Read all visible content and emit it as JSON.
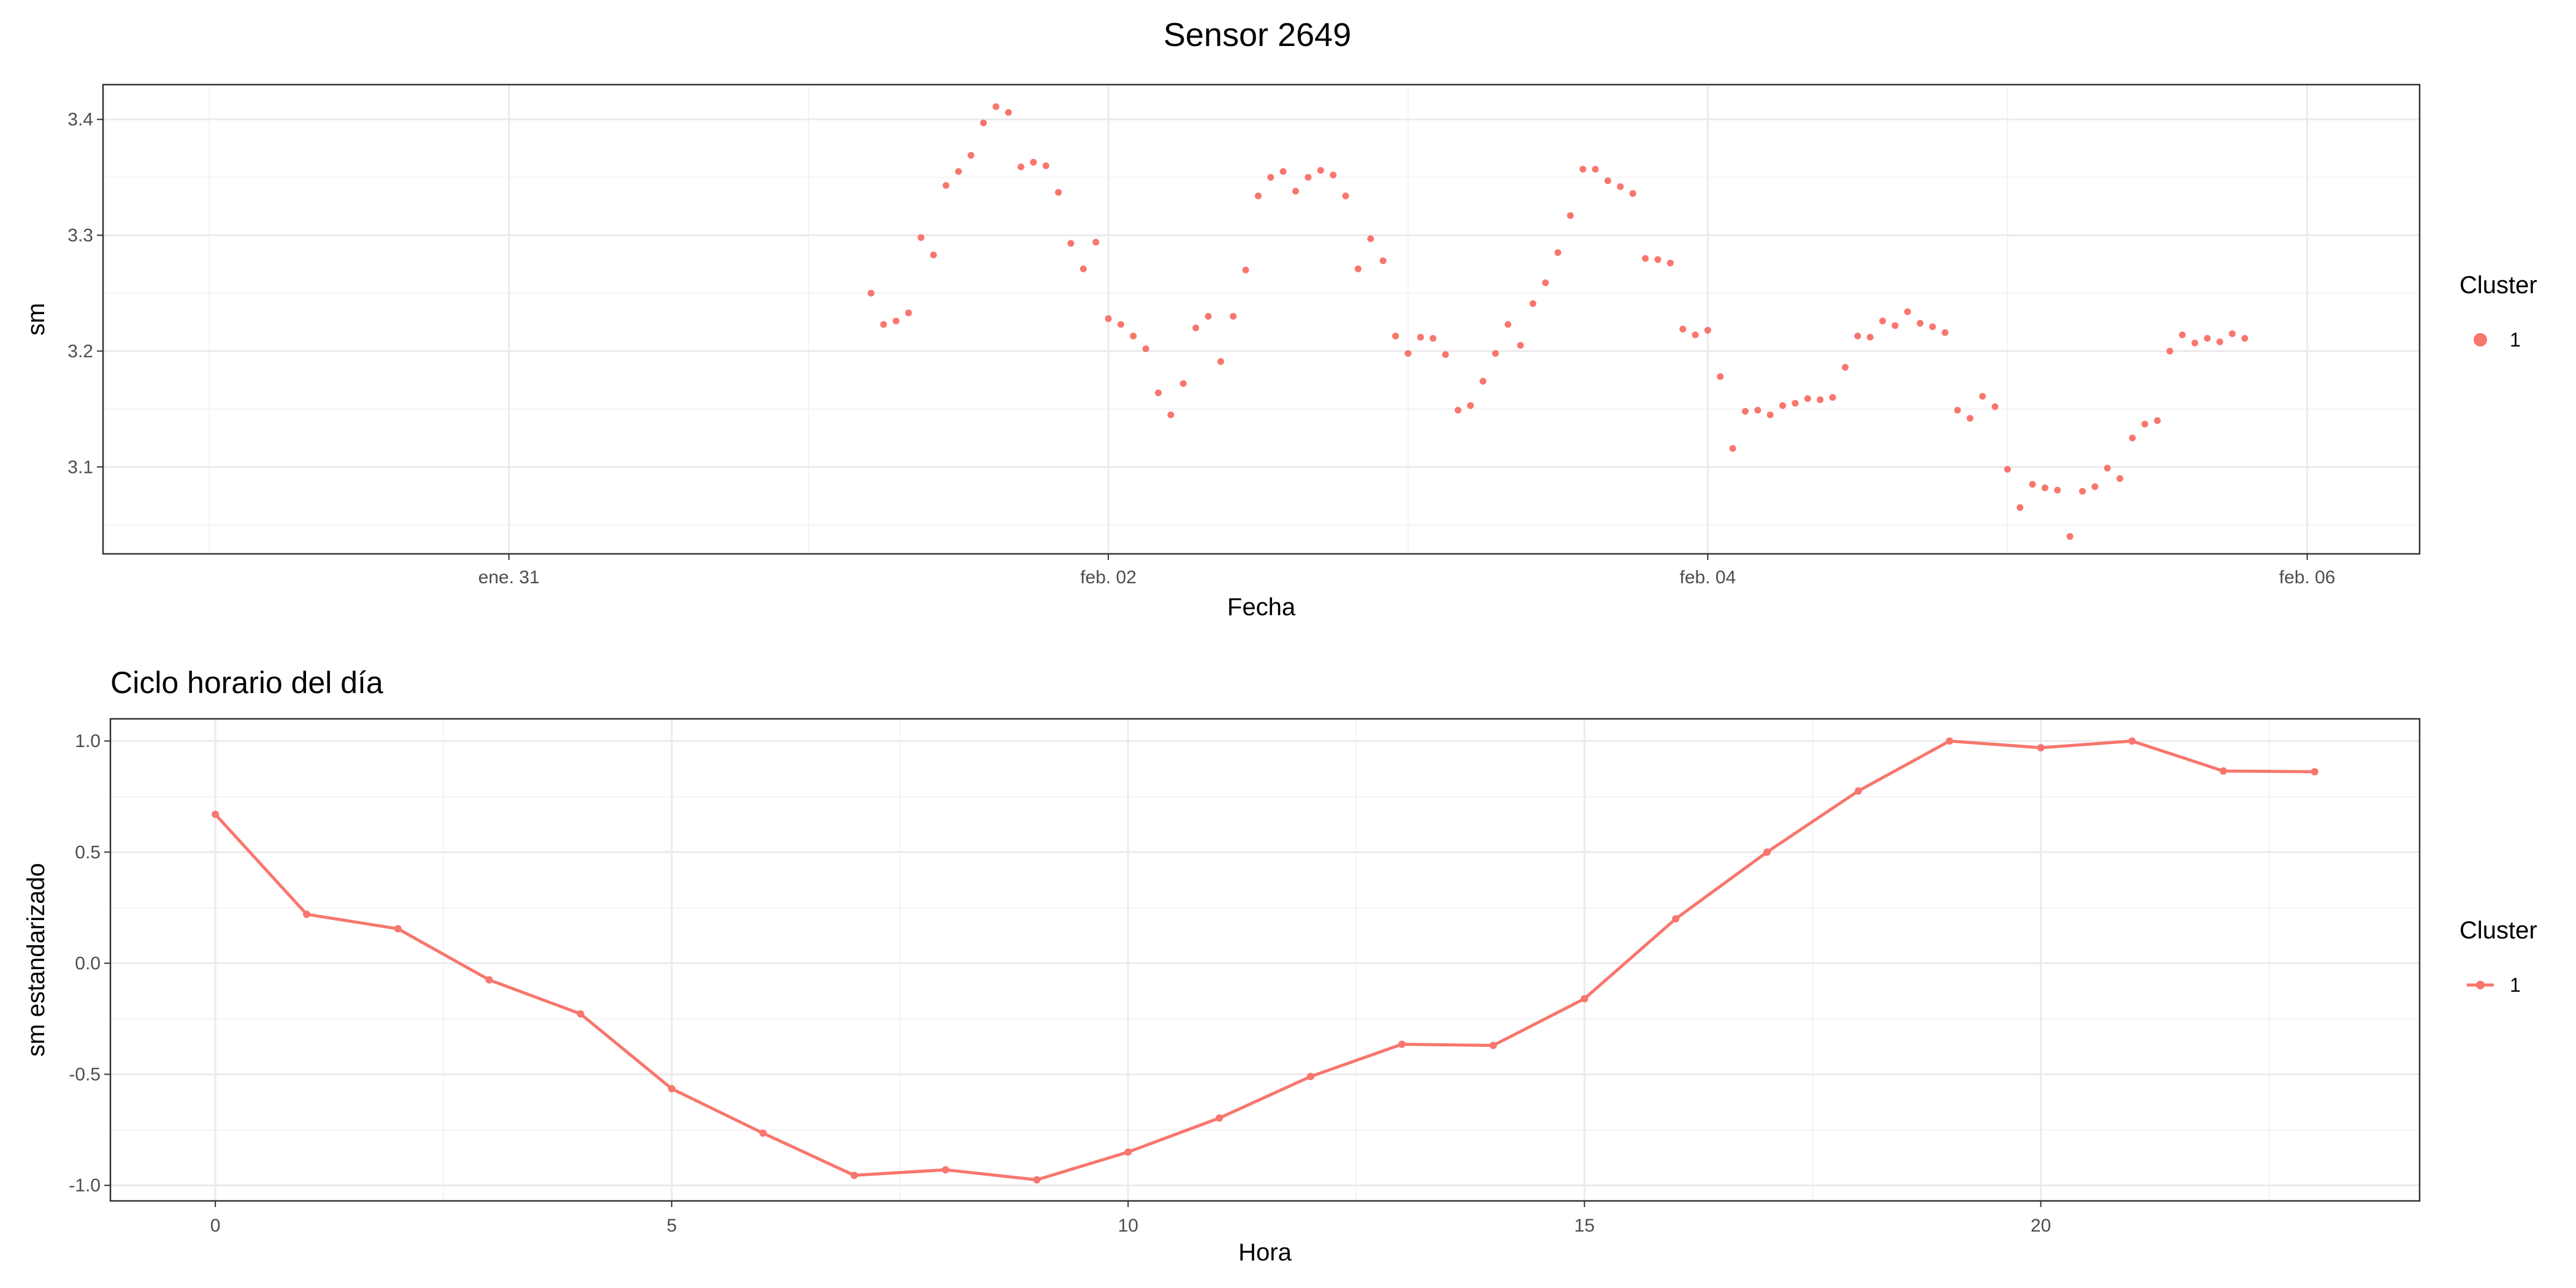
{
  "figure": {
    "main_title": "Sensor 2649"
  },
  "chart_data": [
    {
      "type": "scatter",
      "title": "",
      "xlabel": "Fecha",
      "ylabel": "sm",
      "x_type": "datetime",
      "xlim": [
        "2026-01-29T15:30",
        "2026-02-06T09:00"
      ],
      "ylim": [
        3.025,
        3.43
      ],
      "x_ticks": [
        "2026-01-31T00:00",
        "2026-02-02T00:00",
        "2026-02-04T00:00",
        "2026-02-06T00:00"
      ],
      "x_tick_labels": [
        "ene. 31",
        "feb. 02",
        "feb. 04",
        "feb. 06"
      ],
      "y_ticks": [
        3.1,
        3.2,
        3.3,
        3.4
      ],
      "y_tick_labels": [
        "3.1",
        "3.2",
        "3.3",
        "3.4"
      ],
      "grid": true,
      "legend": {
        "title": "Cluster",
        "position": "right",
        "labels": [
          "1"
        ]
      },
      "series": [
        {
          "name": "1",
          "color": "#F8766D",
          "points": [
            [
              "2026-02-01T05:00",
              3.25
            ],
            [
              "2026-02-01T06:00",
              3.223
            ],
            [
              "2026-02-01T07:00",
              3.226
            ],
            [
              "2026-02-01T08:00",
              3.233
            ],
            [
              "2026-02-01T09:00",
              3.298
            ],
            [
              "2026-02-01T10:00",
              3.283
            ],
            [
              "2026-02-01T11:00",
              3.343
            ],
            [
              "2026-02-01T12:00",
              3.355
            ],
            [
              "2026-02-01T13:00",
              3.369
            ],
            [
              "2026-02-01T14:00",
              3.397
            ],
            [
              "2026-02-01T15:00",
              3.411
            ],
            [
              "2026-02-01T16:00",
              3.406
            ],
            [
              "2026-02-01T17:00",
              3.359
            ],
            [
              "2026-02-01T18:00",
              3.363
            ],
            [
              "2026-02-01T19:00",
              3.36
            ],
            [
              "2026-02-01T20:00",
              3.337
            ],
            [
              "2026-02-01T21:00",
              3.293
            ],
            [
              "2026-02-01T22:00",
              3.271
            ],
            [
              "2026-02-01T23:00",
              3.294
            ],
            [
              "2026-02-02T00:00",
              3.228
            ],
            [
              "2026-02-02T01:00",
              3.223
            ],
            [
              "2026-02-02T02:00",
              3.213
            ],
            [
              "2026-02-02T03:00",
              3.202
            ],
            [
              "2026-02-02T04:00",
              3.164
            ],
            [
              "2026-02-02T05:00",
              3.145
            ],
            [
              "2026-02-02T06:00",
              3.172
            ],
            [
              "2026-02-02T07:00",
              3.22
            ],
            [
              "2026-02-02T08:00",
              3.23
            ],
            [
              "2026-02-02T09:00",
              3.191
            ],
            [
              "2026-02-02T10:00",
              3.23
            ],
            [
              "2026-02-02T11:00",
              3.27
            ],
            [
              "2026-02-02T12:00",
              3.334
            ],
            [
              "2026-02-02T13:00",
              3.35
            ],
            [
              "2026-02-02T14:00",
              3.355
            ],
            [
              "2026-02-02T15:00",
              3.338
            ],
            [
              "2026-02-02T16:00",
              3.35
            ],
            [
              "2026-02-02T17:00",
              3.356
            ],
            [
              "2026-02-02T18:00",
              3.352
            ],
            [
              "2026-02-02T19:00",
              3.334
            ],
            [
              "2026-02-02T20:00",
              3.271
            ],
            [
              "2026-02-02T21:00",
              3.297
            ],
            [
              "2026-02-02T22:00",
              3.278
            ],
            [
              "2026-02-02T23:00",
              3.213
            ],
            [
              "2026-02-03T00:00",
              3.198
            ],
            [
              "2026-02-03T01:00",
              3.212
            ],
            [
              "2026-02-03T02:00",
              3.211
            ],
            [
              "2026-02-03T03:00",
              3.197
            ],
            [
              "2026-02-03T04:00",
              3.149
            ],
            [
              "2026-02-03T05:00",
              3.153
            ],
            [
              "2026-02-03T06:00",
              3.174
            ],
            [
              "2026-02-03T07:00",
              3.198
            ],
            [
              "2026-02-03T08:00",
              3.223
            ],
            [
              "2026-02-03T09:00",
              3.205
            ],
            [
              "2026-02-03T10:00",
              3.241
            ],
            [
              "2026-02-03T11:00",
              3.259
            ],
            [
              "2026-02-03T12:00",
              3.285
            ],
            [
              "2026-02-03T13:00",
              3.317
            ],
            [
              "2026-02-03T14:00",
              3.357
            ],
            [
              "2026-02-03T15:00",
              3.357
            ],
            [
              "2026-02-03T16:00",
              3.347
            ],
            [
              "2026-02-03T17:00",
              3.342
            ],
            [
              "2026-02-03T18:00",
              3.336
            ],
            [
              "2026-02-03T19:00",
              3.28
            ],
            [
              "2026-02-03T20:00",
              3.279
            ],
            [
              "2026-02-03T21:00",
              3.276
            ],
            [
              "2026-02-03T22:00",
              3.219
            ],
            [
              "2026-02-03T23:00",
              3.214
            ],
            [
              "2026-02-04T00:00",
              3.218
            ],
            [
              "2026-02-04T01:00",
              3.178
            ],
            [
              "2026-02-04T02:00",
              3.116
            ],
            [
              "2026-02-04T03:00",
              3.148
            ],
            [
              "2026-02-04T04:00",
              3.149
            ],
            [
              "2026-02-04T05:00",
              3.145
            ],
            [
              "2026-02-04T06:00",
              3.153
            ],
            [
              "2026-02-04T07:00",
              3.155
            ],
            [
              "2026-02-04T08:00",
              3.159
            ],
            [
              "2026-02-04T09:00",
              3.158
            ],
            [
              "2026-02-04T10:00",
              3.16
            ],
            [
              "2026-02-04T11:00",
              3.186
            ],
            [
              "2026-02-04T12:00",
              3.213
            ],
            [
              "2026-02-04T13:00",
              3.212
            ],
            [
              "2026-02-04T14:00",
              3.226
            ],
            [
              "2026-02-04T15:00",
              3.222
            ],
            [
              "2026-02-04T16:00",
              3.234
            ],
            [
              "2026-02-04T17:00",
              3.224
            ],
            [
              "2026-02-04T18:00",
              3.221
            ],
            [
              "2026-02-04T19:00",
              3.216
            ],
            [
              "2026-02-04T20:00",
              3.149
            ],
            [
              "2026-02-04T21:00",
              3.142
            ],
            [
              "2026-02-04T22:00",
              3.161
            ],
            [
              "2026-02-04T23:00",
              3.152
            ],
            [
              "2026-02-05T00:00",
              3.098
            ],
            [
              "2026-02-05T01:00",
              3.065
            ],
            [
              "2026-02-05T02:00",
              3.085
            ],
            [
              "2026-02-05T03:00",
              3.082
            ],
            [
              "2026-02-05T04:00",
              3.08
            ],
            [
              "2026-02-05T05:00",
              3.04
            ],
            [
              "2026-02-05T06:00",
              3.079
            ],
            [
              "2026-02-05T07:00",
              3.083
            ],
            [
              "2026-02-05T08:00",
              3.099
            ],
            [
              "2026-02-05T09:00",
              3.09
            ],
            [
              "2026-02-05T10:00",
              3.125
            ],
            [
              "2026-02-05T11:00",
              3.137
            ],
            [
              "2026-02-05T12:00",
              3.14
            ],
            [
              "2026-02-05T13:00",
              3.2
            ],
            [
              "2026-02-05T14:00",
              3.214
            ],
            [
              "2026-02-05T15:00",
              3.207
            ],
            [
              "2026-02-05T16:00",
              3.211
            ],
            [
              "2026-02-05T17:00",
              3.208
            ],
            [
              "2026-02-05T18:00",
              3.215
            ],
            [
              "2026-02-05T19:00",
              3.211
            ]
          ]
        }
      ]
    },
    {
      "type": "line",
      "title": "Ciclo horario del día",
      "xlabel": "Hora",
      "ylabel": "sm estandarizado",
      "xlim": [
        -1.15,
        24.15
      ],
      "ylim": [
        -1.07,
        1.1
      ],
      "x_ticks": [
        0,
        5,
        10,
        15,
        20
      ],
      "x_tick_labels": [
        "0",
        "5",
        "10",
        "15",
        "20"
      ],
      "y_ticks": [
        -1.0,
        -0.5,
        0.0,
        0.5,
        1.0
      ],
      "y_tick_labels": [
        "-1.0",
        "-0.5",
        "0.0",
        "0.5",
        "1.0"
      ],
      "grid": true,
      "legend": {
        "title": "Cluster",
        "position": "right",
        "labels": [
          "1"
        ]
      },
      "series": [
        {
          "name": "1",
          "color": "#F8766D",
          "x": [
            0,
            1,
            2,
            3,
            4,
            5,
            6,
            7,
            8,
            9,
            10,
            11,
            12,
            13,
            14,
            15,
            16,
            17,
            18,
            19,
            20,
            21,
            22,
            23
          ],
          "values": [
            0.67,
            0.22,
            0.155,
            -0.075,
            -0.228,
            -0.565,
            -0.765,
            -0.955,
            -0.93,
            -0.975,
            -0.85,
            -0.697,
            -0.51,
            -0.365,
            -0.37,
            -0.16,
            0.2,
            0.5,
            0.775,
            1.0,
            0.97,
            1.0,
            0.865,
            0.862
          ]
        }
      ]
    }
  ]
}
